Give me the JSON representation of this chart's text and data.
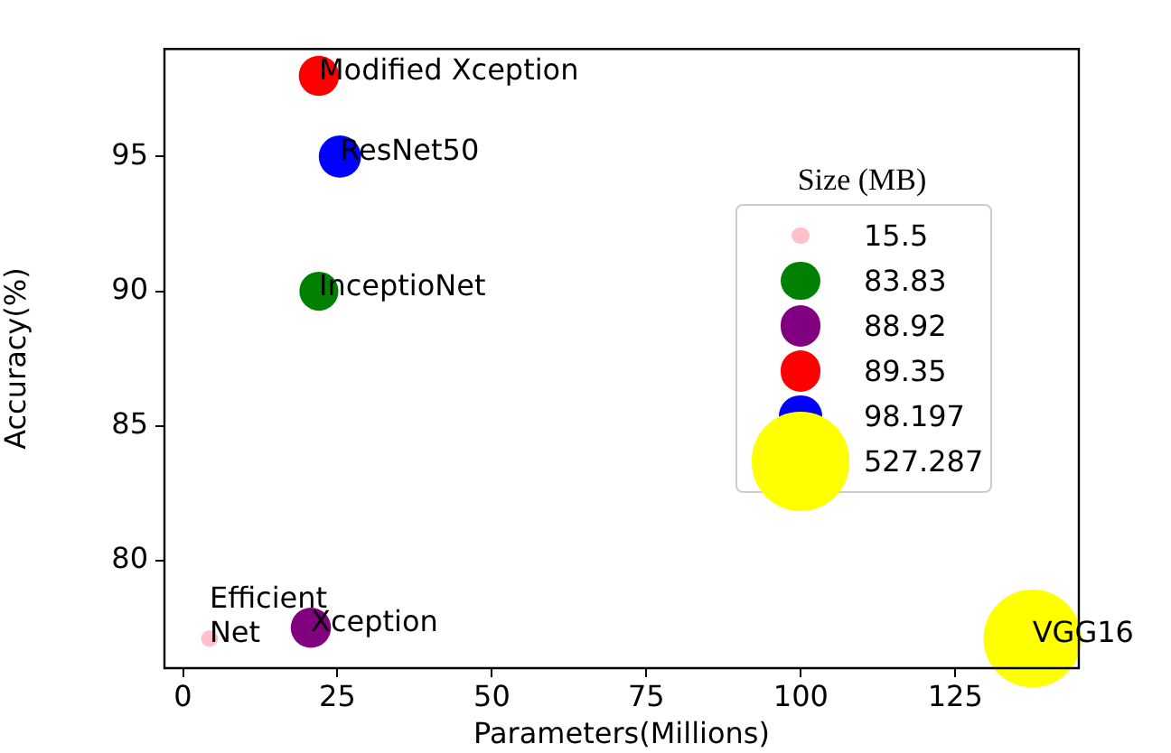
{
  "chart_data": {
    "type": "bubble",
    "xlabel": "Parameters(Millions)",
    "ylabel": "Accuracy(%)",
    "legend_title": "Size (MB)",
    "size_legend": [
      15.5,
      83.83,
      88.92,
      89.35,
      98.197,
      527.287
    ],
    "xlim": [
      -3,
      145
    ],
    "xticks": [
      0,
      25,
      50,
      75,
      100,
      125
    ],
    "ylim": [
      76,
      99
    ],
    "yticks": [
      80,
      85,
      90,
      95
    ],
    "grid": false,
    "series": [
      {
        "color": "#ffc0cb",
        "x": [
          4.3
        ],
        "values": [
          77.1
        ],
        "sizes": [
          15.5
        ]
      },
      {
        "color": "#008000",
        "x": [
          22
        ],
        "values": [
          90
        ],
        "sizes": [
          83.83
        ]
      },
      {
        "color": "#800080",
        "x": [
          20.7
        ],
        "values": [
          77.5
        ],
        "sizes": [
          88.92
        ]
      },
      {
        "color": "#ff0000",
        "x": [
          22
        ],
        "values": [
          98
        ],
        "sizes": [
          89.35
        ]
      },
      {
        "color": "#0000ff",
        "x": [
          25.4
        ],
        "values": [
          95
        ],
        "sizes": [
          98.197
        ]
      },
      {
        "color": "#ffff00",
        "x": [
          137.5
        ],
        "values": [
          77.1
        ],
        "sizes": [
          527.287
        ]
      }
    ],
    "annotations": [
      {
        "text": "Efficient\nNet",
        "x": 4.3,
        "y": 77.1
      },
      {
        "text": "Xception",
        "x": 20.7,
        "y": 77.5
      },
      {
        "text": "InceptioNet",
        "x": 22,
        "y": 90
      },
      {
        "text": "Modified Xception",
        "x": 22,
        "y": 98
      },
      {
        "text": "ResNet50",
        "x": 25.4,
        "y": 95
      },
      {
        "text": "VGG16",
        "x": 137.5,
        "y": 77.1
      }
    ]
  }
}
